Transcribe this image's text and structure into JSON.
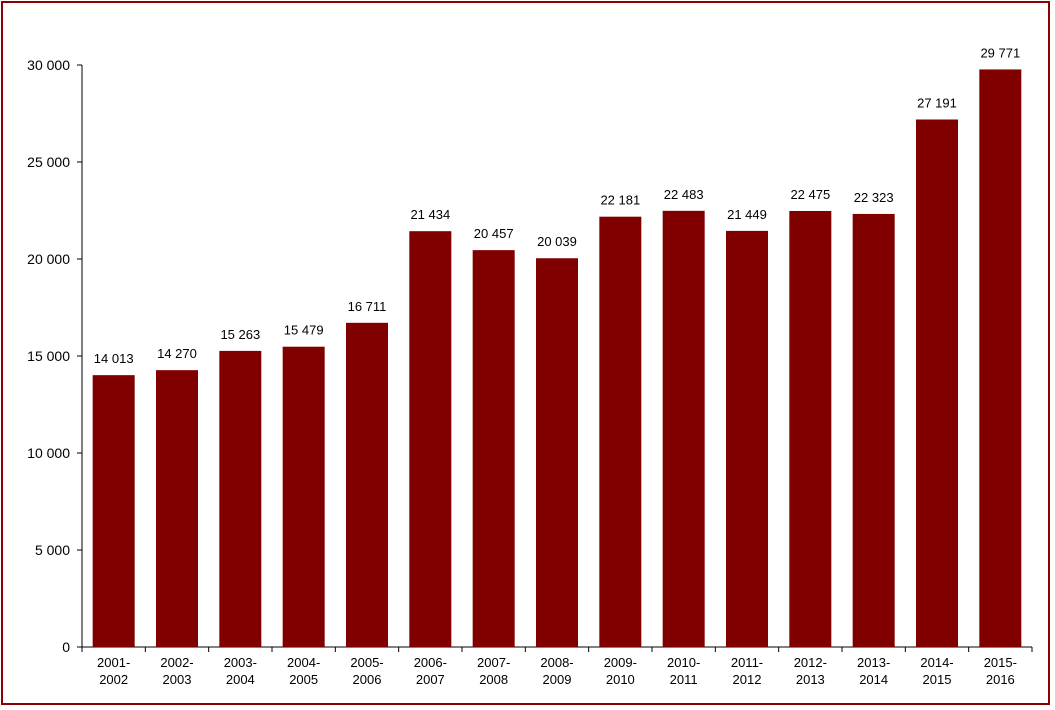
{
  "chart_data": {
    "type": "bar",
    "categories": [
      [
        "2001-",
        "2002"
      ],
      [
        "2002-",
        "2003"
      ],
      [
        "2003-",
        "2004"
      ],
      [
        "2004-",
        "2005"
      ],
      [
        "2005-",
        "2006"
      ],
      [
        "2006-",
        "2007"
      ],
      [
        "2007-",
        "2008"
      ],
      [
        "2008-",
        "2009"
      ],
      [
        "2009-",
        "2010"
      ],
      [
        "2010-",
        "2011"
      ],
      [
        "2011-",
        "2012"
      ],
      [
        "2012-",
        "2013"
      ],
      [
        "2013-",
        "2014"
      ],
      [
        "2014-",
        "2015"
      ],
      [
        "2015-",
        "2016"
      ]
    ],
    "values": [
      14013,
      14270,
      15263,
      15479,
      16711,
      21434,
      20457,
      20039,
      22181,
      22483,
      21449,
      22475,
      22323,
      27191,
      29771
    ],
    "value_labels": [
      "14 013",
      "14 270",
      "15 263",
      "15 479",
      "16 711",
      "21 434",
      "20 457",
      "20 039",
      "22 181",
      "22 483",
      "21 449",
      "22 475",
      "22 323",
      "27 191",
      "29 771"
    ],
    "title": "",
    "xlabel": "",
    "ylabel": "",
    "ylim": [
      0,
      30000
    ],
    "yticks": [
      0,
      5000,
      10000,
      15000,
      20000,
      25000,
      30000
    ],
    "ytick_labels": [
      "0",
      "5 000",
      "10 000",
      "15 000",
      "20 000",
      "25 000",
      "30 000"
    ],
    "grid": false,
    "legend": "none",
    "bar_color": "#800000",
    "frame_color": "#8b0000"
  }
}
